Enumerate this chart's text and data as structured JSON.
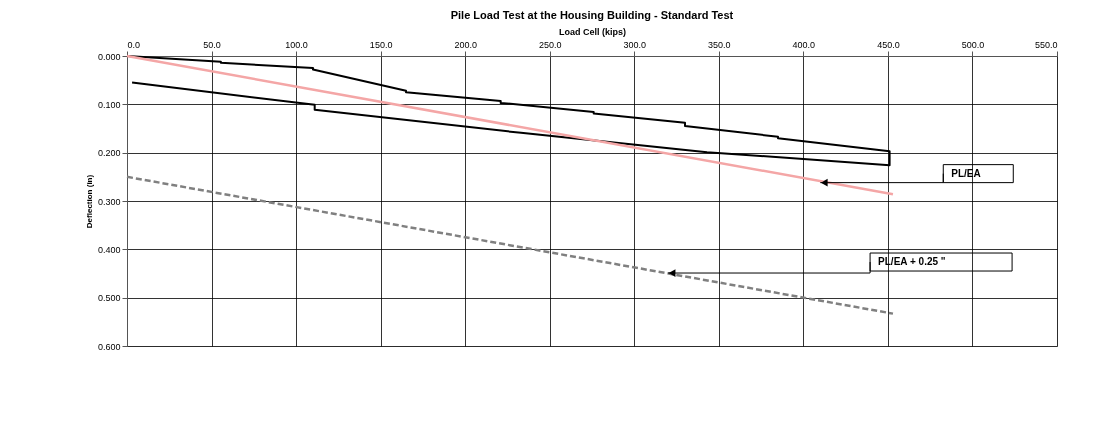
{
  "chart_data": {
    "type": "line",
    "title": "Pile Load Test at the Housing Building - Standard Test",
    "xlabel": "Load Cell (kips)",
    "ylabel": "Deflection (in)",
    "xlim": [
      0,
      550
    ],
    "ylim": [
      0.6,
      0
    ],
    "xticks": [
      {
        "value": 0,
        "label": "0.0"
      },
      {
        "value": 50,
        "label": "50.0"
      },
      {
        "value": 100,
        "label": "100.0"
      },
      {
        "value": 150,
        "label": "150.0"
      },
      {
        "value": 200,
        "label": "200.0"
      },
      {
        "value": 250,
        "label": "250.0"
      },
      {
        "value": 300,
        "label": "300.0"
      },
      {
        "value": 350,
        "label": "350.0"
      },
      {
        "value": 400,
        "label": "400.0"
      },
      {
        "value": 450,
        "label": "450.0"
      },
      {
        "value": 500,
        "label": "500.0"
      },
      {
        "value": 550,
        "label": "550.0"
      }
    ],
    "yticks": [
      {
        "value": 0,
        "label": "0.000"
      },
      {
        "value": 0.1,
        "label": "0.100"
      },
      {
        "value": 0.2,
        "label": "0.200"
      },
      {
        "value": 0.3,
        "label": "0.300"
      },
      {
        "value": 0.4,
        "label": "0.400"
      },
      {
        "value": 0.5,
        "label": "0.500"
      },
      {
        "value": 0.6,
        "label": "0.600"
      }
    ],
    "grid": true,
    "series": [
      {
        "color": "#000000",
        "line_style": "solid",
        "x": [
          0,
          55.5,
          55.5,
          110,
          110,
          165,
          165,
          221,
          221,
          276,
          276,
          330,
          330,
          385,
          385,
          451,
          451,
          343,
          233,
          111,
          111,
          3
        ],
        "values": [
          0,
          0.012,
          0.014,
          0.025,
          0.028,
          0.072,
          0.075,
          0.093,
          0.097,
          0.116,
          0.119,
          0.138,
          0.145,
          0.167,
          0.17,
          0.197,
          0.226,
          0.199,
          0.159,
          0.111,
          0.101,
          0.055
        ]
      },
      {
        "color": "#f4a6a6",
        "line_style": "solid",
        "x": [
          0,
          453
        ],
        "values": [
          0,
          0.286
        ]
      },
      {
        "color": "#808080",
        "line_style": "dashed",
        "x": [
          0,
          453
        ],
        "values": [
          0.25,
          0.533
        ]
      }
    ],
    "annotations": [
      {
        "text": "PL/EA",
        "x": 410,
        "y": 0.262
      },
      {
        "text": "PL/EA + 0.25 \"",
        "x": 320,
        "y": 0.449
      }
    ]
  }
}
